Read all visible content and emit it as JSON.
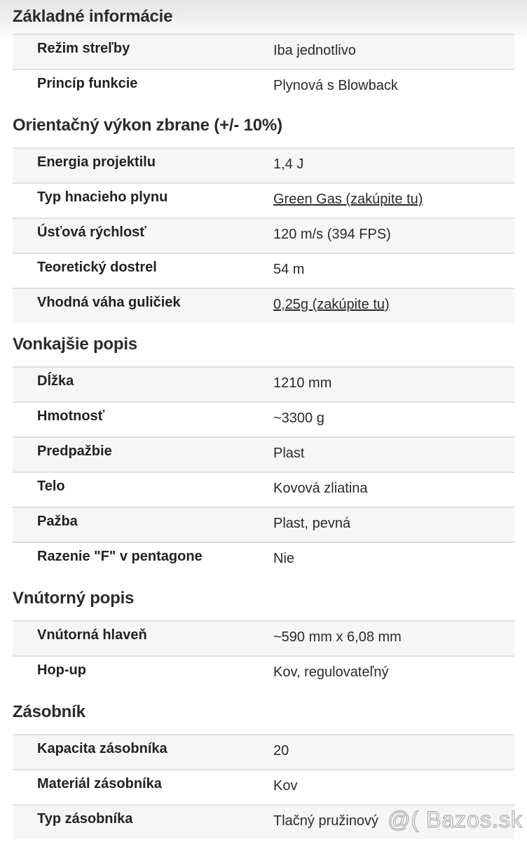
{
  "sections": [
    {
      "title": "Základné informácie",
      "rows": [
        {
          "label": "Režim streľby",
          "value": "Iba jednotlivo"
        },
        {
          "label": "Princíp funkcie",
          "value": "Plynová s Blowback"
        }
      ]
    },
    {
      "title": "Orientačný výkon zbrane (+/- 10%)",
      "rows": [
        {
          "label": "Energia projektilu",
          "value": "1,4 J"
        },
        {
          "label": "Typ hnacieho plynu",
          "value": "Green Gas (zakúpite tu)",
          "link": true
        },
        {
          "label": "Úsťová rýchlosť",
          "value": "120 m/s (394 FPS)"
        },
        {
          "label": "Teoretický dostrel",
          "value": "54 m"
        },
        {
          "label": "Vhodná váha guličiek",
          "value": "0,25g (zakúpite tu)",
          "link": true
        }
      ]
    },
    {
      "title": "Vonkajšie popis",
      "rows": [
        {
          "label": "Dĺžka",
          "value": "1210 mm"
        },
        {
          "label": "Hmotnosť",
          "value": "~3300 g"
        },
        {
          "label": "Predpažbie",
          "value": "Plast"
        },
        {
          "label": "Telo",
          "value": "Kovová zliatina"
        },
        {
          "label": "Pažba",
          "value": "Plast, pevná"
        },
        {
          "label": "Razenie \"F\" v pentagone",
          "value": "Nie"
        }
      ]
    },
    {
      "title": "Vnútorný popis",
      "rows": [
        {
          "label": "Vnútorná hlaveň",
          "value": "~590 mm x 6,08 mm"
        },
        {
          "label": "Hop-up",
          "value": "Kov, regulovateľný"
        }
      ]
    },
    {
      "title": "Zásobník",
      "rows": [
        {
          "label": "Kapacita zásobníka",
          "value": "20"
        },
        {
          "label": "Materiál zásobníka",
          "value": "Kov"
        },
        {
          "label": "Typ zásobníka",
          "value": "Tlačný pružinový"
        }
      ]
    }
  ],
  "watermark": "@( Bazos.sk"
}
